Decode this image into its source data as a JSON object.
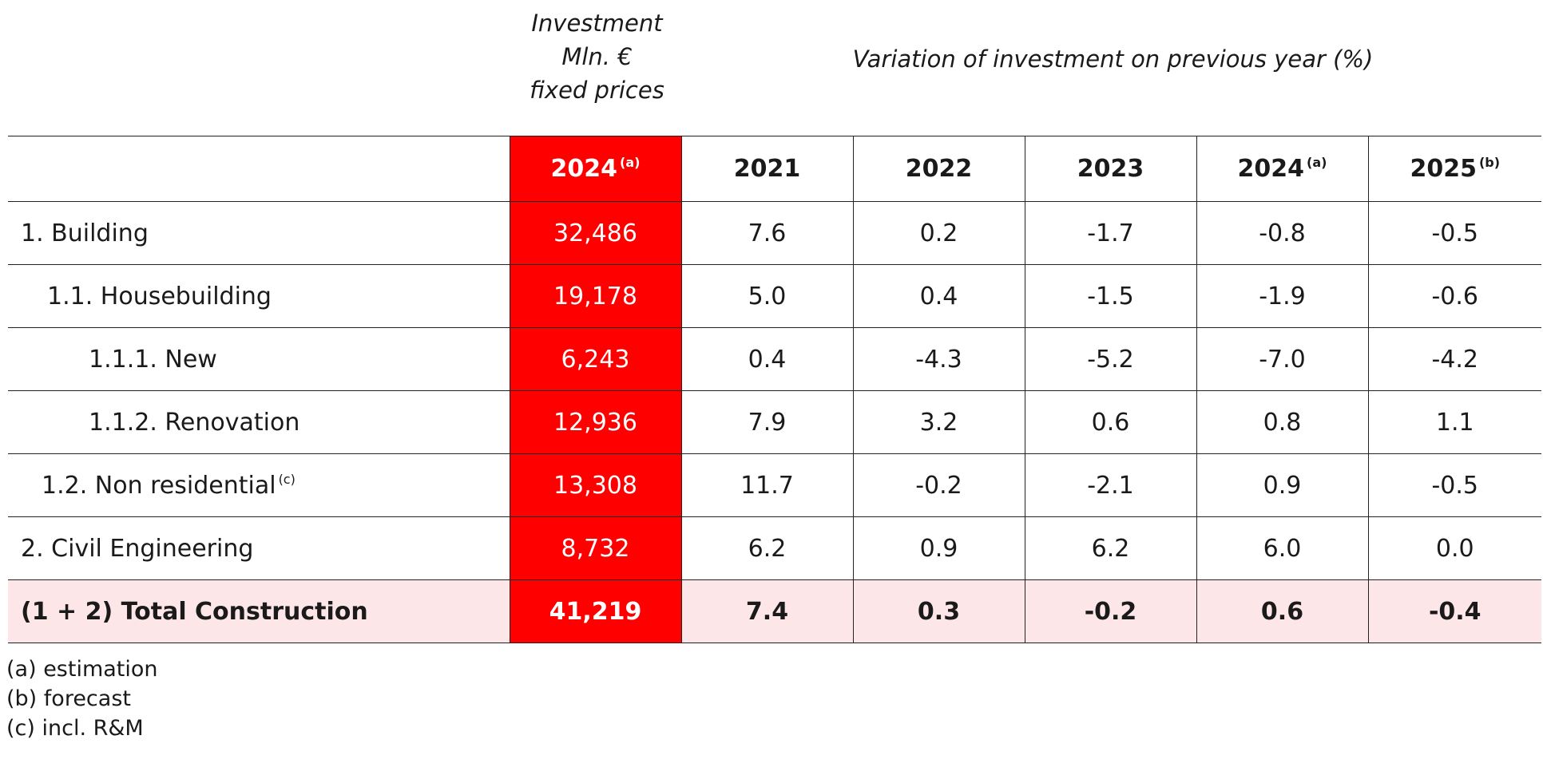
{
  "header": {
    "investment": [
      "Investment",
      "Mln. €",
      "fixed prices"
    ],
    "variation": "Variation of investment on previous year (%)"
  },
  "table": {
    "columns": [
      {
        "label": "",
        "note": ""
      },
      {
        "label": "2024",
        "note": "(a)"
      },
      {
        "label": "2021",
        "note": ""
      },
      {
        "label": "2022",
        "note": ""
      },
      {
        "label": "2023",
        "note": ""
      },
      {
        "label": "2024",
        "note": "(a)"
      },
      {
        "label": "2025",
        "note": "(b)"
      }
    ],
    "rows": [
      {
        "label": "1. Building",
        "note": "",
        "investment": "32,486",
        "values": [
          "7.6",
          "0.2",
          "-1.7",
          "-0.8",
          "-0.5"
        ]
      },
      {
        "label": "1.1. Housebuilding",
        "note": "",
        "investment": "19,178",
        "values": [
          "5.0",
          "0.4",
          "-1.5",
          "-1.9",
          "-0.6"
        ]
      },
      {
        "label": "1.1.1. New",
        "note": "",
        "investment": "6,243",
        "values": [
          "0.4",
          "-4.3",
          "-5.2",
          "-7.0",
          "-4.2"
        ]
      },
      {
        "label": "1.1.2. Renovation",
        "note": "",
        "investment": "12,936",
        "values": [
          "7.9",
          "3.2",
          "0.6",
          "0.8",
          "1.1"
        ]
      },
      {
        "label": "1.2. Non residential",
        "note": "(c)",
        "investment": "13,308",
        "values": [
          "11.7",
          "-0.2",
          "-2.1",
          "0.9",
          "-0.5"
        ]
      },
      {
        "label": "2. Civil Engineering",
        "note": "",
        "investment": "8,732",
        "values": [
          "6.2",
          "0.9",
          "6.2",
          "6.0",
          "0.0"
        ]
      }
    ],
    "total": {
      "label": "(1 + 2) Total Construction",
      "investment": "41,219",
      "values": [
        "7.4",
        "0.3",
        "-0.2",
        "0.6",
        "-0.4"
      ]
    }
  },
  "footnotes": [
    "(a) estimation",
    "(b) forecast",
    "(c) incl. R&M"
  ],
  "colors": {
    "accent": "#ff0000",
    "total_row_bg": "#fde6e8",
    "border": "#222222"
  }
}
